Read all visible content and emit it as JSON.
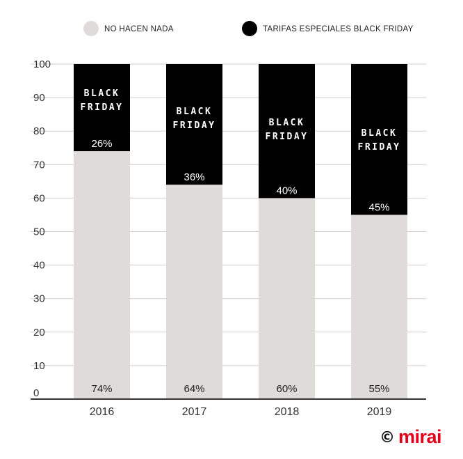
{
  "legend": {
    "items": [
      {
        "label": "NO HACEN NADA",
        "color": "#dedbd8"
      },
      {
        "label": "TARIFAS ESPECIALES BLACK FRIDAY",
        "color": "#000000"
      }
    ]
  },
  "chart_data": {
    "type": "bar",
    "stacked": true,
    "categories": [
      "2016",
      "2017",
      "2018",
      "2019"
    ],
    "series": [
      {
        "name": "NO HACEN NADA",
        "values": [
          74,
          64,
          60,
          55
        ],
        "labels": [
          "74%",
          "64%",
          "60%",
          "55%"
        ],
        "color": "#dedbd8"
      },
      {
        "name": "TARIFAS ESPECIALES BLACK FRIDAY",
        "values": [
          26,
          36,
          40,
          45
        ],
        "labels": [
          "26%",
          "36%",
          "40%",
          "45%"
        ],
        "color": "#000000"
      }
    ],
    "badge_lines": [
      "BLACK",
      "FRIDAY"
    ],
    "yticks": [
      "0",
      "10",
      "20",
      "30",
      "40",
      "50",
      "60",
      "70",
      "80",
      "90",
      "100"
    ],
    "ylim": [
      0,
      100
    ],
    "grid": true,
    "legend_position": "top"
  },
  "branding": {
    "copyright": "©",
    "name": "mirai"
  }
}
